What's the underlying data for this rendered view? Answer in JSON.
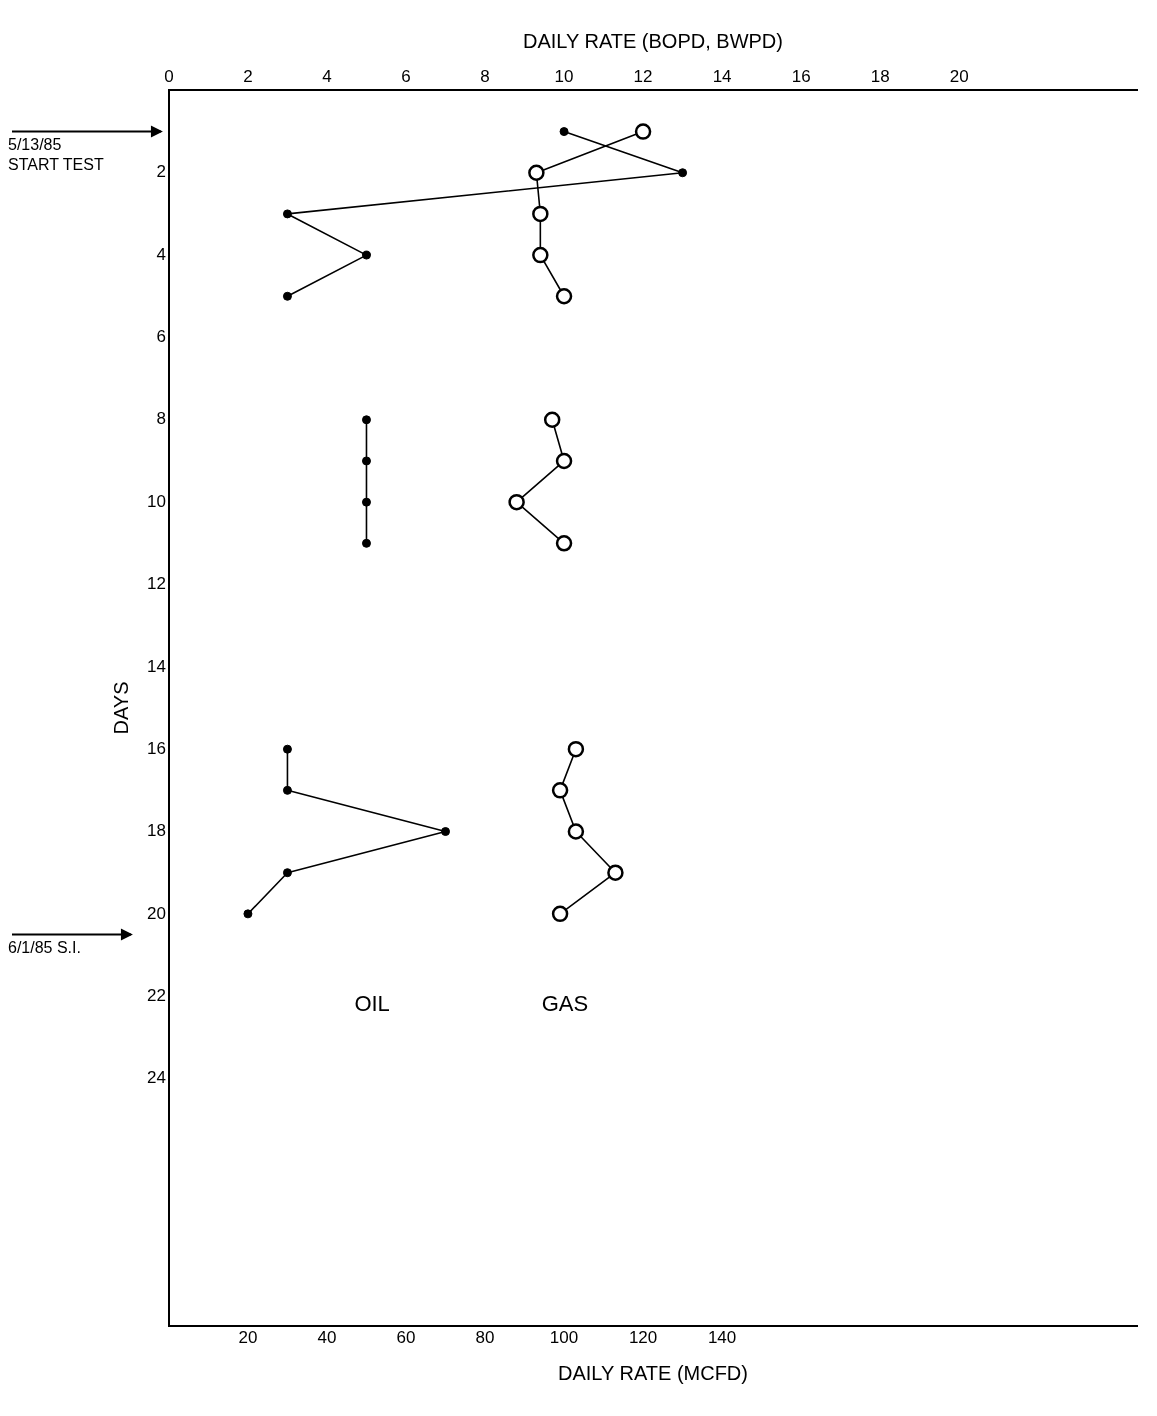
{
  "chart_data": {
    "type": "line",
    "orientation": "horizontal",
    "x": [
      1,
      2,
      3,
      4,
      5,
      6,
      7,
      8,
      9,
      10,
      11,
      12,
      13,
      14,
      15,
      16,
      17,
      18,
      19,
      20
    ],
    "series": [
      {
        "name": "OIL",
        "color": "#000000",
        "axis": "x2",
        "marker": "circle",
        "values": [
          10,
          13,
          3,
          5,
          3,
          null,
          null,
          5,
          5,
          5,
          5,
          null,
          null,
          null,
          null,
          3,
          3,
          7,
          3,
          2
        ]
      },
      {
        "name": "GAS",
        "color": "#000000",
        "marker": "circle",
        "values": [
          120,
          93,
          94,
          94,
          100,
          null,
          null,
          97,
          100,
          88,
          100,
          null,
          null,
          null,
          null,
          103,
          99,
          103,
          113,
          99
        ]
      }
    ],
    "xlabel": "DAILY RATE (MCFD)",
    "x2label": "DAILY RATE (BOPD, BWPD)",
    "ylabel": "DAYS",
    "xlim": [
      0,
      245
    ],
    "xticks": [
      20,
      40,
      60,
      80,
      100,
      120,
      140
    ],
    "x2lim": [
      0,
      24.5
    ],
    "x2ticks": [
      0,
      2,
      4,
      6,
      8,
      10,
      12,
      14,
      16,
      18,
      20
    ],
    "ylim": [
      30,
      0
    ],
    "yticks": [
      2,
      4,
      6,
      8,
      10,
      12,
      14,
      16,
      18,
      20,
      22,
      24
    ],
    "annotations": [
      "5/13/85 START TEST",
      "6/1/85 S.I."
    ],
    "grid": false,
    "legend": false,
    "line_style": "solid"
  }
}
